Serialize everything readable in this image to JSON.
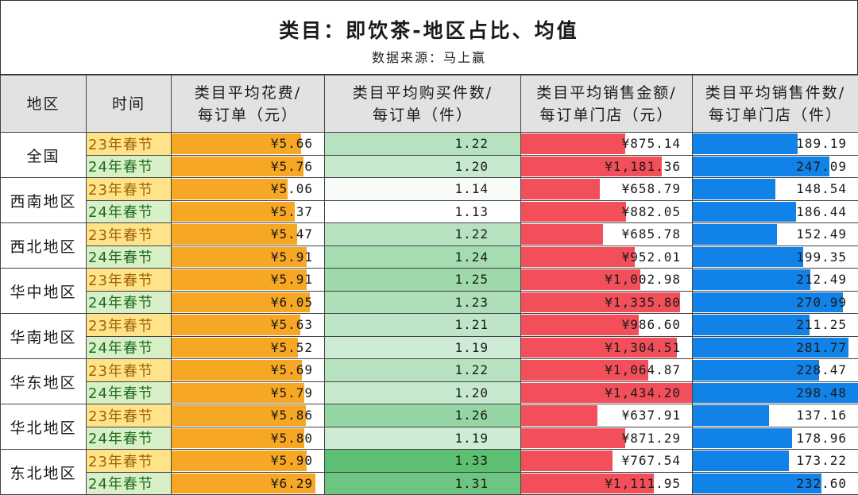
{
  "title": "类目：即饮茶-地区占比、均值",
  "subtitle": "数据来源：马上赢",
  "colors": {
    "spend_bar": "#f6a723",
    "sales_amount_bar": "#f24f5b",
    "sales_count_bar": "#1182e8",
    "qty_heat_low": "#ffffff",
    "qty_heat_high": "#5cbf72",
    "header_bg": "#e2e2e2",
    "y23_bg": "#ffe38a",
    "y24_bg": "#d8f0c8"
  },
  "headers": {
    "region": "地区",
    "time": "时间",
    "avg_spend": [
      "类目平均花费/",
      "每订单（元）"
    ],
    "avg_qty": [
      "类目平均购买件数/",
      "每订单（件）"
    ],
    "avg_sales_amount": [
      "类目平均销售金额/",
      "每订单门店（元）"
    ],
    "avg_sales_count": [
      "类目平均销售件数/",
      "每订单门店（件）"
    ]
  },
  "chart_data": {
    "type": "table",
    "columns": [
      "地区",
      "时间",
      "类目平均花费/每订单（元）",
      "类目平均购买件数/每订单（件）",
      "类目平均销售金额/每订单门店（元）",
      "类目平均销售件数/每订单门店（件）"
    ],
    "rows": [
      {
        "region": "全国",
        "time": "23年春节",
        "spend": 5.66,
        "spend_text": "¥5.66",
        "qty": 1.22,
        "qty_text": "1.22",
        "amount": 875.14,
        "amount_text": "¥875.14",
        "count": 189.19,
        "count_text": "189.19"
      },
      {
        "region": "全国",
        "time": "24年春节",
        "spend": 5.76,
        "spend_text": "¥5.76",
        "qty": 1.2,
        "qty_text": "1.20",
        "amount": 1181.36,
        "amount_text": "¥1,181.36",
        "count": 247.09,
        "count_text": "247.09"
      },
      {
        "region": "西南地区",
        "time": "23年春节",
        "spend": 5.06,
        "spend_text": "¥5.06",
        "qty": 1.14,
        "qty_text": "1.14",
        "amount": 658.79,
        "amount_text": "¥658.79",
        "count": 148.54,
        "count_text": "148.54"
      },
      {
        "region": "西南地区",
        "time": "24年春节",
        "spend": 5.37,
        "spend_text": "¥5.37",
        "qty": 1.13,
        "qty_text": "1.13",
        "amount": 882.05,
        "amount_text": "¥882.05",
        "count": 186.44,
        "count_text": "186.44"
      },
      {
        "region": "西北地区",
        "time": "23年春节",
        "spend": 5.47,
        "spend_text": "¥5.47",
        "qty": 1.22,
        "qty_text": "1.22",
        "amount": 685.78,
        "amount_text": "¥685.78",
        "count": 152.49,
        "count_text": "152.49"
      },
      {
        "region": "西北地区",
        "time": "24年春节",
        "spend": 5.91,
        "spend_text": "¥5.91",
        "qty": 1.24,
        "qty_text": "1.24",
        "amount": 952.01,
        "amount_text": "¥952.01",
        "count": 199.35,
        "count_text": "199.35"
      },
      {
        "region": "华中地区",
        "time": "23年春节",
        "spend": 5.91,
        "spend_text": "¥5.91",
        "qty": 1.25,
        "qty_text": "1.25",
        "amount": 1002.98,
        "amount_text": "¥1,002.98",
        "count": 212.49,
        "count_text": "212.49"
      },
      {
        "region": "华中地区",
        "time": "24年春节",
        "spend": 6.05,
        "spend_text": "¥6.05",
        "qty": 1.23,
        "qty_text": "1.23",
        "amount": 1335.8,
        "amount_text": "¥1,335.80",
        "count": 270.99,
        "count_text": "270.99"
      },
      {
        "region": "华南地区",
        "time": "23年春节",
        "spend": 5.63,
        "spend_text": "¥5.63",
        "qty": 1.21,
        "qty_text": "1.21",
        "amount": 986.6,
        "amount_text": "¥986.60",
        "count": 211.25,
        "count_text": "211.25"
      },
      {
        "region": "华南地区",
        "time": "24年春节",
        "spend": 5.52,
        "spend_text": "¥5.52",
        "qty": 1.19,
        "qty_text": "1.19",
        "amount": 1304.51,
        "amount_text": "¥1,304.51",
        "count": 281.77,
        "count_text": "281.77"
      },
      {
        "region": "华东地区",
        "time": "23年春节",
        "spend": 5.69,
        "spend_text": "¥5.69",
        "qty": 1.22,
        "qty_text": "1.22",
        "amount": 1064.87,
        "amount_text": "¥1,064.87",
        "count": 228.47,
        "count_text": "228.47"
      },
      {
        "region": "华东地区",
        "time": "24年春节",
        "spend": 5.79,
        "spend_text": "¥5.79",
        "qty": 1.2,
        "qty_text": "1.20",
        "amount": 1434.2,
        "amount_text": "¥1,434.20",
        "count": 298.48,
        "count_text": "298.48"
      },
      {
        "region": "华北地区",
        "time": "23年春节",
        "spend": 5.86,
        "spend_text": "¥5.86",
        "qty": 1.26,
        "qty_text": "1.26",
        "amount": 637.91,
        "amount_text": "¥637.91",
        "count": 137.16,
        "count_text": "137.16"
      },
      {
        "region": "华北地区",
        "time": "24年春节",
        "spend": 5.8,
        "spend_text": "¥5.80",
        "qty": 1.19,
        "qty_text": "1.19",
        "amount": 871.29,
        "amount_text": "¥871.29",
        "count": 178.96,
        "count_text": "178.96"
      },
      {
        "region": "东北地区",
        "time": "23年春节",
        "spend": 5.9,
        "spend_text": "¥5.90",
        "qty": 1.33,
        "qty_text": "1.33",
        "amount": 767.54,
        "amount_text": "¥767.54",
        "count": 173.22,
        "count_text": "173.22"
      },
      {
        "region": "东北地区",
        "time": "24年春节",
        "spend": 6.29,
        "spend_text": "¥6.29",
        "qty": 1.31,
        "qty_text": "1.31",
        "amount": 1111.95,
        "amount_text": "¥1,111.95",
        "count": 232.6,
        "count_text": "232.60"
      }
    ]
  }
}
